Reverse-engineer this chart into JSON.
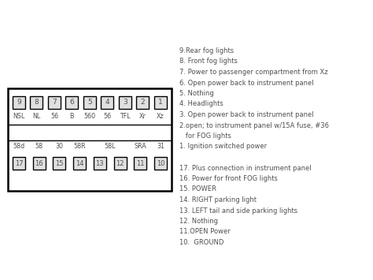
{
  "background_color": "#ffffff",
  "border_color": "#000000",
  "box_fill": "#e0e0e0",
  "text_color": "#505050",
  "top_pins": [
    "9",
    "8",
    "7",
    "6",
    "5",
    "4",
    "3",
    "2",
    "1"
  ],
  "top_labels": [
    "NSL",
    "NL",
    "56",
    "B",
    "560",
    "56",
    "TFL",
    "Xr",
    "Xz"
  ],
  "bottom_pins": [
    "17",
    "16",
    "15",
    "14",
    "13",
    "12",
    "11",
    "10"
  ],
  "bottom_labels_map": [
    [
      0,
      "58d"
    ],
    [
      1,
      "58"
    ],
    [
      2,
      "30"
    ],
    [
      3,
      "58R"
    ],
    [
      4,
      "58L"
    ],
    [
      6,
      "SRA"
    ],
    [
      7,
      "31"
    ]
  ],
  "right_text_lines": [
    "9.Rear fog lights",
    "8. Front fog lights",
    "7. Power to passenger compartment from Xz",
    "6. Open power back to instrument panel",
    "5. Nothing",
    "4. Headlights",
    "3. Open power back to instrument panel",
    "2.open; to instrument panel w/15A fuse, #36",
    "   for FOG lights",
    "1. Ignition switched power",
    "",
    "17. Plus connection in instrument panel",
    "16. Power for front FOG lights",
    "15. POWER",
    "14. RIGHT parking light",
    "13. LEFT tail and side parking lights",
    "12. Nothing",
    "11.OPEN Power",
    "10.  GROUND"
  ],
  "fig_w": 4.74,
  "fig_h": 3.55,
  "dpi": 100
}
